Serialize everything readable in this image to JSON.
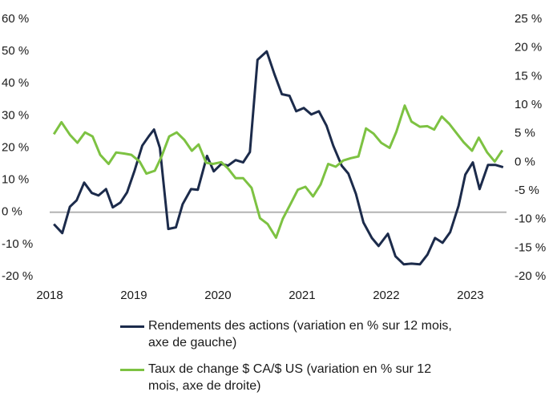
{
  "chart_data": {
    "type": "line",
    "xlim": [
      2018,
      2023.43
    ],
    "xticks": [
      2018,
      2019,
      2020,
      2021,
      2022,
      2023
    ],
    "ylim": [
      -20,
      60
    ],
    "yticks": [
      {
        "value": -20,
        "label": "-20 %"
      },
      {
        "value": -10,
        "label": "-10 %"
      },
      {
        "value": 0,
        "label": "0 %"
      },
      {
        "value": 10,
        "label": "10 %"
      },
      {
        "value": 20,
        "label": "20 %"
      },
      {
        "value": 30,
        "label": "30 %"
      },
      {
        "value": 40,
        "label": "40 %"
      },
      {
        "value": 50,
        "label": "50 %"
      },
      {
        "value": 60,
        "label": "60 %"
      }
    ],
    "y2lim": [
      -20,
      25
    ],
    "y2ticks": [
      {
        "value": -20,
        "label": "-20 %"
      },
      {
        "value": -15,
        "label": "-15 %"
      },
      {
        "value": -10,
        "label": "-10 %"
      },
      {
        "value": -5,
        "label": "-5 %"
      },
      {
        "value": 0,
        "label": "0 %"
      },
      {
        "value": 5,
        "label": "5 %"
      },
      {
        "value": 10,
        "label": "10 %"
      },
      {
        "value": 15,
        "label": "15 %"
      },
      {
        "value": 20,
        "label": "20 %"
      },
      {
        "value": 25,
        "label": "25 %"
      }
    ],
    "series": [
      {
        "name": "Rendements des actions (variation en % sur 12 mois, axe de gauche)",
        "color": "#1c2b4b",
        "axis": "y",
        "x": [
          2018.05,
          2018.15,
          2018.24,
          2018.32,
          2018.41,
          2018.5,
          2018.58,
          2018.67,
          2018.75,
          2018.84,
          2018.92,
          2019.01,
          2019.1,
          2019.18,
          2019.24,
          2019.31,
          2019.41,
          2019.5,
          2019.58,
          2019.68,
          2019.76,
          2019.87,
          2019.95,
          2020.04,
          2020.12,
          2020.21,
          2020.3,
          2020.38,
          2020.47,
          2020.58,
          2020.67,
          2020.76,
          2020.85,
          2020.93,
          2021.02,
          2021.11,
          2021.2,
          2021.29,
          2021.37,
          2021.47,
          2021.55,
          2021.64,
          2021.73,
          2021.83,
          2021.91,
          2022.02,
          2022.11,
          2022.21,
          2022.3,
          2022.4,
          2022.49,
          2022.58,
          2022.67,
          2022.76,
          2022.86,
          2022.94,
          2023.03,
          2023.11,
          2023.21,
          2023.3,
          2023.39
        ],
        "values": [
          -3.7,
          -6.5,
          1.7,
          3.7,
          9.2,
          6,
          5.2,
          7.2,
          1.5,
          3,
          6.2,
          13,
          20.7,
          23.7,
          25.7,
          20,
          -5.2,
          -4.7,
          2.5,
          7.2,
          7,
          17.5,
          12.7,
          15,
          14.5,
          16.2,
          15.5,
          18.7,
          47.4,
          50,
          43,
          36.7,
          36.2,
          31.4,
          32.4,
          30.4,
          31.4,
          26.9,
          20.7,
          14.5,
          12,
          5.7,
          -3.2,
          -8,
          -10.5,
          -6.7,
          -13.7,
          -16.2,
          -16,
          -16.2,
          -13.2,
          -8,
          -9.5,
          -6.2,
          2,
          11.7,
          15.5,
          7.2,
          14.7,
          14.7,
          14
        ]
      },
      {
        "name": "Taux de change $ CA/$ US (variation en % sur 12 mois, axe de droite)",
        "color": "#7dc242",
        "axis": "y2",
        "x": [
          2018.05,
          2018.14,
          2018.24,
          2018.33,
          2018.42,
          2018.51,
          2018.6,
          2018.7,
          2018.79,
          2018.89,
          2018.97,
          2019.07,
          2019.15,
          2019.25,
          2019.33,
          2019.42,
          2019.51,
          2019.6,
          2019.69,
          2019.77,
          2019.86,
          2019.94,
          2020.04,
          2020.12,
          2020.21,
          2020.3,
          2020.4,
          2020.5,
          2020.59,
          2020.69,
          2020.77,
          2020.86,
          2020.95,
          2021.04,
          2021.13,
          2021.22,
          2021.31,
          2021.4,
          2021.49,
          2021.58,
          2021.67,
          2021.76,
          2021.85,
          2021.94,
          2022.04,
          2022.12,
          2022.22,
          2022.3,
          2022.4,
          2022.49,
          2022.57,
          2022.66,
          2022.75,
          2022.84,
          2022.92,
          2023.02,
          2023.1,
          2023.2,
          2023.29,
          2023.38
        ],
        "values": [
          4.9,
          7,
          4.8,
          3.4,
          5.2,
          4.5,
          1.3,
          -0.3,
          1.7,
          1.5,
          1.3,
          0.1,
          -2,
          -1.5,
          1,
          4.5,
          5.2,
          3.9,
          2,
          3.1,
          -0.1,
          -0.3,
          0,
          -1.1,
          -2.8,
          -2.8,
          -4.5,
          -9.8,
          -10.8,
          -13.2,
          -9.9,
          -7.4,
          -4.8,
          -4.3,
          -6,
          -3.9,
          -0.3,
          -0.8,
          0.3,
          0.7,
          1,
          5.9,
          5,
          3.4,
          2.5,
          5.3,
          9.9,
          7.1,
          6.2,
          6.3,
          5.7,
          8,
          6.7,
          5,
          3.5,
          2,
          4.3,
          1.7,
          0.1,
          2.1
        ]
      }
    ]
  }
}
